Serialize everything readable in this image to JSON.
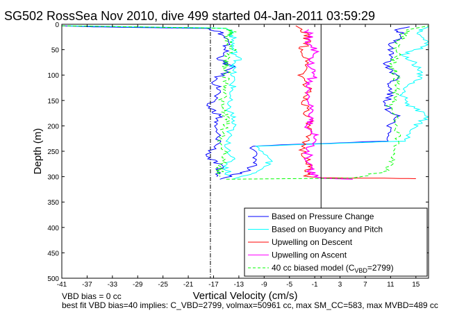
{
  "chart_data": {
    "type": "line",
    "title": "SG502 RossSea Nov 2010, dive 499 started 04-Jan-2011 03:59:29",
    "xlabel": "Vertical Velocity (cm/s)",
    "ylabel": "Depth (m)",
    "xlim": [
      -41,
      17
    ],
    "ylim": [
      500,
      0
    ],
    "y_reversed": true,
    "x_ticks": [
      "-41",
      "-37",
      "-33",
      "-29",
      "-25",
      "-21",
      "-17",
      "-13",
      "-9",
      "-5",
      "-1",
      "3",
      "7",
      "11",
      "15"
    ],
    "y_ticks": [
      "0",
      "50",
      "100",
      "150",
      "200",
      "250",
      "300",
      "350",
      "400",
      "450",
      "500"
    ],
    "legend_position": "bottom-right",
    "legend": [
      {
        "label": "Based on Pressure Change",
        "color": "#0000ff",
        "dash": false
      },
      {
        "label": "Based on Buoyancy and Pitch",
        "color": "#00ffff",
        "dash": false
      },
      {
        "label": "Upwelling on Descent",
        "color": "#ff0000",
        "dash": false
      },
      {
        "label": "Upwelling on Ascent",
        "color": "#ff00ff",
        "dash": false
      },
      {
        "label_prefix": "40 cc biased model (C",
        "label_sub": "VBD",
        "label_suffix": "=2799)",
        "color": "#00ff00",
        "dash": true
      }
    ],
    "vertical_lines": [
      {
        "x": -17.5,
        "color": "#000000",
        "style": "dashdot"
      },
      {
        "x": 0,
        "color": "#000000",
        "style": "solid"
      },
      {
        "x": 17,
        "color": "#000000",
        "style": "dashed"
      }
    ],
    "series": [
      {
        "name": "Based on Pressure Change",
        "color": "#0000ff",
        "descent": {
          "x": [
            -41,
            -36,
            -25,
            -18,
            -16,
            -15,
            -15,
            -16,
            -14,
            -17,
            -16,
            -18,
            -16,
            -17,
            -16,
            -18,
            -16,
            -16.5
          ],
          "y": [
            3,
            5,
            7,
            8,
            15,
            30,
            50,
            70,
            85,
            110,
            130,
            160,
            180,
            200,
            230,
            260,
            280,
            300
          ]
        },
        "ascent": {
          "x": [
            -16,
            -12,
            -10,
            -11,
            10,
            11,
            12,
            10,
            11,
            11,
            12,
            10,
            11,
            11,
            13,
            12,
            14
          ],
          "y": [
            305,
            290,
            270,
            240,
            230,
            200,
            180,
            160,
            140,
            120,
            100,
            80,
            60,
            40,
            20,
            10,
            5
          ]
        }
      },
      {
        "name": "Based on Buoyancy and Pitch",
        "color": "#00ffff",
        "descent": {
          "x": [
            -40,
            -30,
            -18,
            -15,
            -14,
            -14,
            -14,
            -13,
            -14,
            -14,
            -14,
            -15,
            -14,
            -14,
            -15,
            -14,
            -15,
            -14.5
          ],
          "y": [
            3,
            5,
            7,
            8,
            15,
            30,
            50,
            70,
            85,
            110,
            130,
            160,
            180,
            200,
            230,
            260,
            280,
            300
          ]
        },
        "ascent": {
          "x": [
            -14,
            -10,
            -8,
            -10,
            13,
            15,
            17,
            14,
            13,
            14,
            16,
            15,
            13,
            17,
            15,
            16,
            17
          ],
          "y": [
            305,
            290,
            270,
            240,
            230,
            200,
            180,
            160,
            140,
            120,
            100,
            80,
            60,
            40,
            20,
            10,
            5
          ]
        }
      },
      {
        "name": "Upwelling on Descent",
        "color": "#ff0000",
        "x": [
          -4,
          -3,
          -2,
          -3,
          -2,
          -3,
          -2,
          -2.5,
          -2,
          -2,
          -3,
          -2,
          -2,
          -2,
          0,
          5,
          10,
          15
        ],
        "y": [
          3,
          10,
          30,
          50,
          80,
          100,
          130,
          150,
          180,
          210,
          240,
          270,
          290,
          300,
          302,
          303,
          303,
          304
        ]
      },
      {
        "name": "Upwelling on Ascent",
        "color": "#ff00ff",
        "x": [
          5,
          0,
          -1,
          -2,
          -2,
          -1,
          -2,
          -2,
          -2,
          -2,
          -1,
          -2,
          -1,
          -2,
          -2
        ],
        "y": [
          305,
          303,
          300,
          280,
          250,
          220,
          200,
          180,
          150,
          120,
          100,
          80,
          50,
          30,
          10
        ]
      },
      {
        "name": "40 cc biased model (CVBD=2799)",
        "color": "#00ff00",
        "descent": {
          "x": [
            -41,
            -30,
            -20,
            -15,
            -14,
            -15,
            -14,
            -15,
            -15,
            -15,
            -15,
            -16,
            -15,
            -15,
            -16,
            -15,
            -16,
            -16
          ],
          "y": [
            3,
            5,
            7,
            8,
            15,
            30,
            50,
            70,
            85,
            110,
            130,
            160,
            180,
            200,
            230,
            260,
            280,
            300
          ]
        },
        "ascent": {
          "x": [
            -15,
            -5,
            5,
            10,
            11,
            12,
            12,
            11,
            12,
            12,
            12,
            11,
            12,
            12,
            13,
            14,
            17
          ],
          "y": [
            305,
            304,
            303,
            290,
            270,
            240,
            200,
            160,
            140,
            120,
            100,
            80,
            60,
            40,
            20,
            10,
            3
          ]
        }
      }
    ]
  },
  "footer": {
    "line1": "VBD bias = 0 cc",
    "line2": "best fit VBD bias=40 implies: C_VBD=2799, volmax=50961 cc, max SM_CC=583, max MVBD=489 cc"
  }
}
